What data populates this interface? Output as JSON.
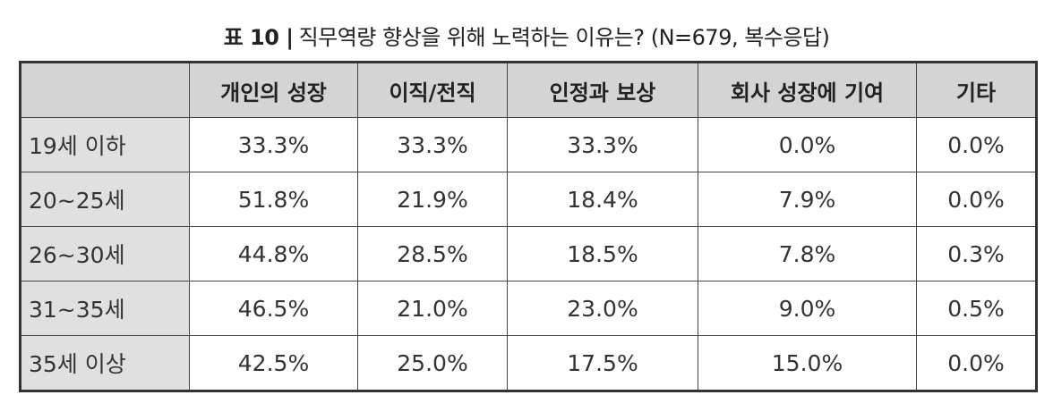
{
  "title": {
    "label": "표 10 |",
    "text": "직무역량 향상을 위해 노력하는 이유는? (N=679, 복수응답)"
  },
  "table": {
    "columns": [
      "개인의 성장",
      "이직/전직",
      "인정과 보상",
      "회사 성장에 기여",
      "기타"
    ],
    "rows": [
      [
        "19세 이하",
        "33.3%",
        "33.3%",
        "33.3%",
        "0.0%",
        "0.0%"
      ],
      [
        "20~25세",
        "51.8%",
        "21.9%",
        "18.4%",
        "7.9%",
        "0.0%"
      ],
      [
        "26~30세",
        "44.8%",
        "28.5%",
        "18.5%",
        "7.8%",
        "0.3%"
      ],
      [
        "31~35세",
        "46.5%",
        "21.0%",
        "23.0%",
        "9.0%",
        "0.5%"
      ],
      [
        "35세 이상",
        "42.5%",
        "25.0%",
        "17.5%",
        "15.0%",
        "0.0%"
      ]
    ]
  }
}
